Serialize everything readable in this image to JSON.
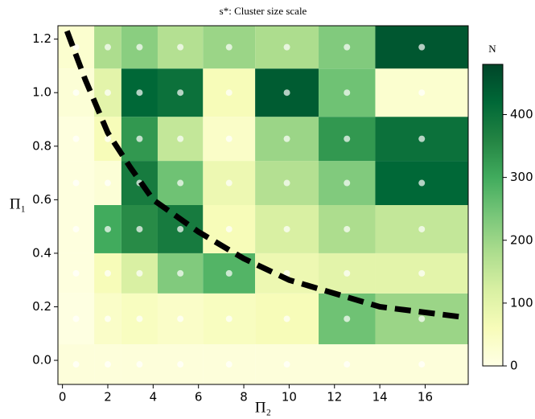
{
  "chart_data": {
    "type": "tilemap",
    "title": "s*: Cluster size scale",
    "x_label": "Π₂",
    "y_label": "Π₁",
    "xlim": [
      -0.2,
      17.9
    ],
    "ylim": [
      -0.09,
      1.25
    ],
    "xticks": [
      0,
      2,
      4,
      6,
      8,
      10,
      12,
      14,
      16
    ],
    "yticks": [
      {
        "value": 0,
        "label": "0.0"
      },
      {
        "value": 0.2,
        "label": "0.2"
      },
      {
        "value": 0.4,
        "label": "0.4"
      },
      {
        "value": 0.6,
        "label": "0.6"
      },
      {
        "value": 0.8,
        "label": "0.8"
      },
      {
        "value": 1,
        "label": "1.0"
      },
      {
        "value": 1.2,
        "label": "1.2"
      }
    ],
    "x_edges": [
      -0.2,
      1.4,
      2.6,
      4.2,
      6.2,
      8.5,
      11.3,
      13.8,
      17.9
    ],
    "y_edges": [
      -0.09,
      0.06,
      0.25,
      0.4,
      0.58,
      0.745,
      0.91,
      1.09,
      1.25
    ],
    "values": [
      [
        15,
        15,
        15,
        15,
        15,
        15,
        15,
        15
      ],
      [
        5,
        40,
        50,
        40,
        50,
        60,
        250,
        200
      ],
      [
        10,
        60,
        120,
        230,
        280,
        80,
        100,
        100
      ],
      [
        10,
        300,
        350,
        380,
        60,
        120,
        180,
        150
      ],
      [
        10,
        20,
        380,
        250,
        80,
        170,
        230,
        420
      ],
      [
        10,
        60,
        330,
        150,
        40,
        200,
        330,
        400
      ],
      [
        20,
        100,
        420,
        400,
        60,
        440,
        250,
        30
      ],
      [
        30,
        180,
        220,
        170,
        200,
        180,
        230,
        450
      ]
    ],
    "curve": {
      "color": "#000000",
      "x": [
        0.2,
        1,
        2,
        3,
        4,
        6,
        8,
        10,
        12,
        14,
        17.8
      ],
      "y": [
        1.23,
        1.05,
        0.85,
        0.72,
        0.6,
        0.48,
        0.38,
        0.3,
        0.25,
        0.2,
        0.16
      ]
    },
    "colorbar": {
      "label": "N",
      "clim": [
        0,
        480
      ],
      "ticks": [
        0,
        100,
        200,
        300,
        400
      ],
      "colormap": [
        "#ffffe5",
        "#f7fcb9",
        "#d9f0a3",
        "#addd8e",
        "#78c679",
        "#41ab5d",
        "#238443",
        "#006837",
        "#004529"
      ]
    }
  }
}
